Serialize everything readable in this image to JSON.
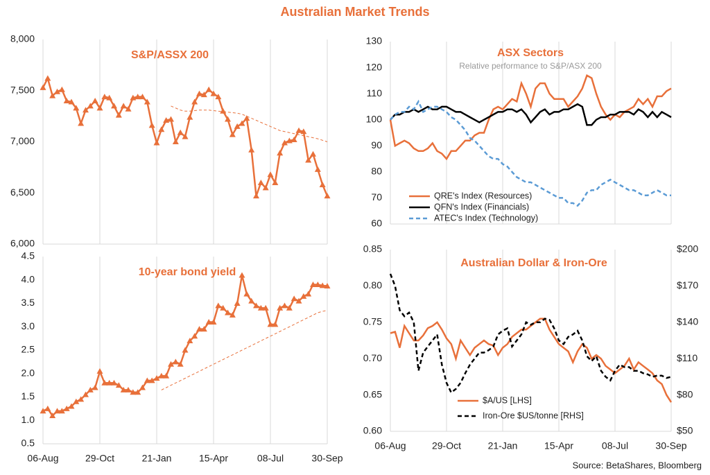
{
  "title": "Australian Market Trends",
  "source": "Source: BetaShares, Bloomberg",
  "chart_data": [
    {
      "type": "line",
      "title": "S&P/ASSX 200",
      "ylim": [
        6000,
        8000
      ],
      "yticks": [
        {
          "value": 6000,
          "label": "6,000"
        },
        {
          "value": 6500,
          "label": "6,500"
        },
        {
          "value": 7000,
          "label": "7,000"
        },
        {
          "value": 7500,
          "label": "7,500"
        },
        {
          "value": 8000,
          "label": "8,000"
        }
      ],
      "series": [
        {
          "color": "#E8703A",
          "marker": "triangle",
          "values": [
            7530,
            7620,
            7450,
            7490,
            7510,
            7400,
            7390,
            7330,
            7180,
            7310,
            7350,
            7400,
            7330,
            7440,
            7430,
            7350,
            7260,
            7350,
            7320,
            7430,
            7440,
            7440,
            7390,
            7160,
            6990,
            7120,
            7210,
            7220,
            7000,
            7090,
            7050,
            7240,
            7390,
            7470,
            7460,
            7510,
            7470,
            7440,
            7300,
            7220,
            7070,
            7150,
            7180,
            7230,
            6920,
            6470,
            6600,
            6550,
            6680,
            6600,
            6890,
            6990,
            7010,
            7020,
            7110,
            7100,
            6820,
            6880,
            6730,
            6580,
            6470
          ]
        },
        {
          "color": "#E8703A",
          "line_style": "dashed",
          "values": [
            null,
            null,
            null,
            null,
            null,
            null,
            null,
            null,
            null,
            null,
            null,
            null,
            null,
            null,
            null,
            null,
            null,
            null,
            null,
            null,
            null,
            null,
            null,
            null,
            null,
            null,
            null,
            7350,
            7330,
            7310,
            7300,
            7300,
            7305,
            7310,
            7310,
            7310,
            7305,
            7300,
            7295,
            7290,
            7285,
            7280,
            7270,
            7250,
            7230,
            7210,
            7190,
            7170,
            7150,
            7130,
            7110,
            7100,
            7090,
            7080,
            7070,
            7060,
            7050,
            7040,
            7030,
            7015,
            7000
          ]
        }
      ]
    },
    {
      "type": "line",
      "title": "10-year bond yield",
      "categories": [
        "06-Aug",
        null,
        null,
        null,
        null,
        null,
        null,
        null,
        null,
        null,
        null,
        null,
        "29-Oct",
        null,
        null,
        null,
        null,
        null,
        null,
        null,
        null,
        null,
        null,
        null,
        "21-Jan",
        null,
        null,
        null,
        null,
        null,
        null,
        null,
        null,
        null,
        null,
        null,
        "15-Apr",
        null,
        null,
        null,
        null,
        null,
        null,
        null,
        null,
        null,
        null,
        null,
        "08-Jul",
        null,
        null,
        null,
        null,
        null,
        null,
        null,
        null,
        null,
        null,
        null,
        "30-Sep"
      ],
      "ylim": [
        0.5,
        4.5
      ],
      "yticks": [
        0.5,
        {
          "value": 1,
          "label": "1.0"
        },
        1.5,
        {
          "value": 2,
          "label": "2.0"
        },
        2.5,
        {
          "value": 3,
          "label": "3.0"
        },
        3.5,
        {
          "value": 4,
          "label": "4.0"
        },
        4.5
      ],
      "series": [
        {
          "color": "#E8703A",
          "marker": "triangle",
          "values": [
            1.2,
            1.25,
            1.1,
            1.2,
            1.2,
            1.25,
            1.3,
            1.4,
            1.45,
            1.55,
            1.65,
            1.7,
            2.05,
            1.8,
            1.8,
            1.8,
            1.75,
            1.65,
            1.65,
            1.6,
            1.6,
            1.7,
            1.85,
            1.85,
            1.9,
            1.95,
            1.95,
            2.2,
            2.25,
            2.2,
            2.5,
            2.7,
            2.8,
            2.95,
            2.95,
            3.1,
            3.1,
            3.45,
            3.4,
            3.3,
            3.25,
            3.5,
            4.1,
            3.7,
            3.55,
            3.45,
            3.4,
            3.4,
            3.05,
            3.05,
            3.4,
            3.45,
            3.4,
            3.6,
            3.55,
            3.65,
            3.7,
            3.9,
            3.9,
            3.88,
            3.87
          ]
        },
        {
          "color": "#E8703A",
          "line_style": "dashed",
          "values": [
            null,
            null,
            null,
            null,
            null,
            null,
            null,
            null,
            null,
            null,
            null,
            null,
            null,
            null,
            null,
            null,
            null,
            null,
            null,
            null,
            null,
            null,
            null,
            null,
            null,
            1.65,
            1.7,
            1.75,
            1.8,
            1.85,
            1.9,
            1.95,
            2.0,
            2.05,
            2.1,
            2.15,
            2.2,
            2.25,
            2.3,
            2.35,
            2.4,
            2.45,
            2.5,
            2.55,
            2.6,
            2.65,
            2.7,
            2.75,
            2.8,
            2.85,
            2.9,
            2.95,
            3.0,
            3.05,
            3.1,
            3.15,
            3.2,
            3.25,
            3.3,
            3.33,
            3.35
          ]
        }
      ]
    },
    {
      "type": "line",
      "title": "ASX Sectors",
      "subtitle": "Relative performance to S&P/ASX 200",
      "legend": "lower left",
      "ylim": [
        60,
        130
      ],
      "yticks": [
        60,
        70,
        80,
        90,
        100,
        110,
        120,
        130
      ],
      "series": [
        {
          "name": "QRE's Index (Resources)",
          "color": "#E8703A",
          "values": [
            100,
            90,
            91,
            92,
            91,
            89,
            88,
            88,
            89,
            91,
            88,
            87,
            85,
            88,
            88,
            90,
            92,
            92,
            94,
            95,
            95,
            100,
            104,
            105,
            104,
            106,
            108,
            107,
            114,
            110,
            105,
            112,
            114,
            114,
            110,
            108,
            108,
            108,
            105,
            107,
            109,
            112,
            117,
            116,
            110,
            105,
            102,
            100,
            102,
            101,
            103,
            104,
            105,
            108,
            106,
            108,
            105,
            109,
            109,
            111,
            112
          ]
        },
        {
          "name": "QFN's Index (Financials)",
          "color": "#000000",
          "values": [
            100,
            102,
            102,
            103,
            103,
            104,
            103,
            104,
            105,
            104,
            104,
            105,
            105,
            104,
            103,
            103,
            102,
            101,
            100,
            99,
            100,
            101,
            102,
            103,
            103,
            104,
            104,
            103,
            104,
            102,
            99,
            101,
            103,
            104,
            102,
            103,
            103,
            104,
            104,
            105,
            106,
            105,
            98,
            98,
            100,
            101,
            101,
            102,
            102,
            103,
            103,
            103,
            102,
            104,
            103,
            101,
            103,
            101,
            103,
            102,
            101
          ]
        },
        {
          "name": "ATEC's Index (Technology)",
          "color": "#5B9BD5",
          "line_style": "dashed",
          "values": [
            100,
            102,
            103,
            103,
            105,
            104,
            107,
            103,
            104,
            105,
            105,
            104,
            103,
            101,
            100,
            98,
            96,
            93,
            92,
            90,
            88,
            86,
            85,
            85,
            83,
            82,
            80,
            78,
            77,
            76,
            76,
            75,
            74,
            73,
            72,
            71,
            70,
            70,
            68,
            68,
            67,
            69,
            72,
            73,
            73,
            75,
            76,
            77,
            76,
            75,
            74,
            73,
            73,
            72,
            71,
            71,
            72,
            73,
            72,
            71,
            71
          ]
        }
      ]
    },
    {
      "type": "line",
      "title": "Australian Dollar & Iron-Ore",
      "legend": "lower left",
      "categories": [
        "06-Aug",
        null,
        null,
        null,
        null,
        null,
        null,
        null,
        null,
        null,
        null,
        null,
        "29-Oct",
        null,
        null,
        null,
        null,
        null,
        null,
        null,
        null,
        null,
        null,
        null,
        "21-Jan",
        null,
        null,
        null,
        null,
        null,
        null,
        null,
        null,
        null,
        null,
        null,
        "15-Apr",
        null,
        null,
        null,
        null,
        null,
        null,
        null,
        null,
        null,
        null,
        null,
        "08-Jul",
        null,
        null,
        null,
        null,
        null,
        null,
        null,
        null,
        null,
        null,
        null,
        "30-Sep"
      ],
      "ylim": [
        0.6,
        0.85
      ],
      "yticks": [
        {
          "value": 0.6,
          "label": "0.60"
        },
        0.65,
        {
          "value": 0.7,
          "label": "0.70"
        },
        0.75,
        {
          "value": 0.8,
          "label": "0.80"
        },
        0.85
      ],
      "y2lim": [
        50,
        200
      ],
      "y2ticks": [
        {
          "value": 50,
          "label": "$50"
        },
        {
          "value": 80,
          "label": "$80"
        },
        {
          "value": 110,
          "label": "$110"
        },
        {
          "value": 140,
          "label": "$140"
        },
        {
          "value": 170,
          "label": "$170"
        },
        {
          "value": 200,
          "label": "$200"
        }
      ],
      "series": [
        {
          "name": "$A/US [LHS]",
          "color": "#E8703A",
          "values": [
            0.735,
            0.737,
            0.715,
            0.745,
            0.735,
            0.725,
            0.725,
            0.732,
            0.742,
            0.745,
            0.75,
            0.74,
            0.728,
            0.72,
            0.7,
            0.725,
            0.715,
            0.705,
            0.715,
            0.72,
            0.725,
            0.72,
            0.718,
            0.705,
            0.715,
            0.72,
            0.73,
            0.735,
            0.74,
            0.74,
            0.745,
            0.75,
            0.755,
            0.755,
            0.74,
            0.73,
            0.72,
            0.715,
            0.71,
            0.695,
            0.71,
            0.72,
            0.715,
            0.7,
            0.705,
            0.7,
            0.69,
            0.685,
            0.68,
            0.685,
            0.69,
            0.7,
            0.685,
            0.695,
            0.69,
            0.685,
            0.68,
            0.67,
            0.665,
            0.65,
            0.64
          ]
        },
        {
          "name": "Iron-Ore $US/tonne [RHS]",
          "color": "#000000",
          "line_style": "dashed",
          "axis": "y2",
          "values": [
            180,
            170,
            150,
            145,
            148,
            140,
            100,
            115,
            120,
            125,
            130,
            105,
            90,
            82,
            85,
            90,
            98,
            105,
            110,
            115,
            115,
            117,
            120,
            130,
            133,
            135,
            120,
            125,
            130,
            140,
            138,
            140,
            140,
            143,
            142,
            135,
            125,
            122,
            128,
            130,
            133,
            125,
            112,
            108,
            112,
            100,
            95,
            92,
            100,
            105,
            103,
            103,
            100,
            100,
            98,
            97,
            95,
            96,
            96,
            94,
            95
          ]
        }
      ]
    }
  ]
}
